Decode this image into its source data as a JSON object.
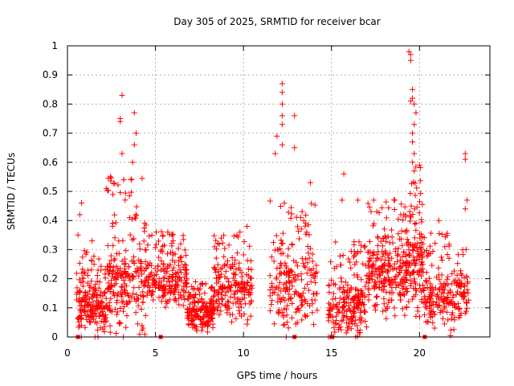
{
  "chart_data": {
    "type": "scatter",
    "title": "Day 305 of 2025, SRMTID for receiver bcar",
    "xlabel": "GPS time / hours",
    "ylabel": "SRMTID / TECUs",
    "xlim": [
      0,
      24
    ],
    "ylim": [
      0,
      1
    ],
    "xticks": [
      0,
      5,
      10,
      15,
      20
    ],
    "yticks": [
      0,
      0.1,
      0.2,
      0.3,
      0.4,
      0.5,
      0.6,
      0.7,
      0.8,
      0.9,
      1
    ],
    "ytick_labels": [
      "0",
      "0.1",
      "0.2",
      "0.3",
      "0.4",
      "0.5",
      "0.6",
      "0.7",
      "0.8",
      "0.9",
      "1"
    ],
    "grid": true,
    "marker": "+",
    "marker_color": "#ff0000",
    "series": [
      {
        "name": "SRMTID",
        "clusters": [
          {
            "t0": 0.5,
            "t1": 2.2,
            "n": 190,
            "base": 0.1,
            "spread": 0.09,
            "outliers": [
              [
                0.8,
                0.46
              ],
              [
                0.7,
                0.42
              ],
              [
                0.6,
                0.35
              ],
              [
                1.4,
                0.33
              ]
            ]
          },
          {
            "t0": 2.2,
            "t1": 4.5,
            "n": 240,
            "base": 0.2,
            "spread": 0.16,
            "outliers": [
              [
                3.1,
                0.83
              ],
              [
                3.8,
                0.77
              ],
              [
                3.0,
                0.75
              ],
              [
                3.0,
                0.74
              ],
              [
                3.9,
                0.7
              ],
              [
                3.8,
                0.66
              ],
              [
                3.7,
                0.6
              ],
              [
                3.1,
                0.63
              ],
              [
                3.2,
                0.54
              ],
              [
                2.2,
                0.51
              ]
            ]
          },
          {
            "t0": 4.5,
            "t1": 6.8,
            "n": 200,
            "base": 0.19,
            "spread": 0.08,
            "outliers": [
              [
                5.7,
                0.36
              ],
              [
                6.0,
                0.33
              ]
            ]
          },
          {
            "t0": 6.8,
            "t1": 8.3,
            "n": 180,
            "base": 0.08,
            "spread": 0.05,
            "outliers": []
          },
          {
            "t0": 8.3,
            "t1": 10.5,
            "n": 200,
            "base": 0.16,
            "spread": 0.09,
            "outliers": [
              [
                10.2,
                0.38
              ],
              [
                9.8,
                0.36
              ]
            ]
          },
          {
            "t0": 11.5,
            "t1": 14.2,
            "n": 210,
            "base": 0.18,
            "spread": 0.14,
            "outliers": [
              [
                12.2,
                0.87
              ],
              [
                12.2,
                0.84
              ],
              [
                12.2,
                0.8
              ],
              [
                12.2,
                0.76
              ],
              [
                12.9,
                0.76
              ],
              [
                12.2,
                0.73
              ],
              [
                11.9,
                0.69
              ],
              [
                12.2,
                0.66
              ],
              [
                11.8,
                0.63
              ],
              [
                12.9,
                0.65
              ],
              [
                13.8,
                0.53
              ]
            ]
          },
          {
            "t0": 14.8,
            "t1": 17.0,
            "n": 210,
            "base": 0.11,
            "spread": 0.1,
            "outliers": [
              [
                15.7,
                0.56
              ],
              [
                16.5,
                0.47
              ],
              [
                15.6,
                0.47
              ]
            ]
          },
          {
            "t0": 17.0,
            "t1": 19.2,
            "n": 230,
            "base": 0.22,
            "spread": 0.12,
            "outliers": [
              [
                17.4,
                0.47
              ],
              [
                18.6,
                0.47
              ]
            ]
          },
          {
            "t0": 19.2,
            "t1": 20.2,
            "n": 150,
            "base": 0.25,
            "spread": 0.16,
            "outliers": [
              [
                19.4,
                0.98
              ],
              [
                19.5,
                0.97
              ],
              [
                19.5,
                0.95
              ],
              [
                19.6,
                0.85
              ],
              [
                19.6,
                0.82
              ],
              [
                19.5,
                0.81
              ],
              [
                19.7,
                0.8
              ],
              [
                19.8,
                0.77
              ],
              [
                19.7,
                0.73
              ],
              [
                19.6,
                0.7
              ],
              [
                19.6,
                0.67
              ],
              [
                19.7,
                0.63
              ],
              [
                19.6,
                0.6
              ],
              [
                19.7,
                0.57
              ]
            ]
          },
          {
            "t0": 20.2,
            "t1": 22.8,
            "n": 220,
            "base": 0.14,
            "spread": 0.1,
            "outliers": [
              [
                22.6,
                0.63
              ],
              [
                22.6,
                0.61
              ],
              [
                22.7,
                0.47
              ],
              [
                22.6,
                0.44
              ],
              [
                21.1,
                0.4
              ]
            ]
          }
        ],
        "zero_markers": [
          0.6,
          5.3,
          12.9,
          15.0,
          20.3
        ]
      }
    ]
  }
}
